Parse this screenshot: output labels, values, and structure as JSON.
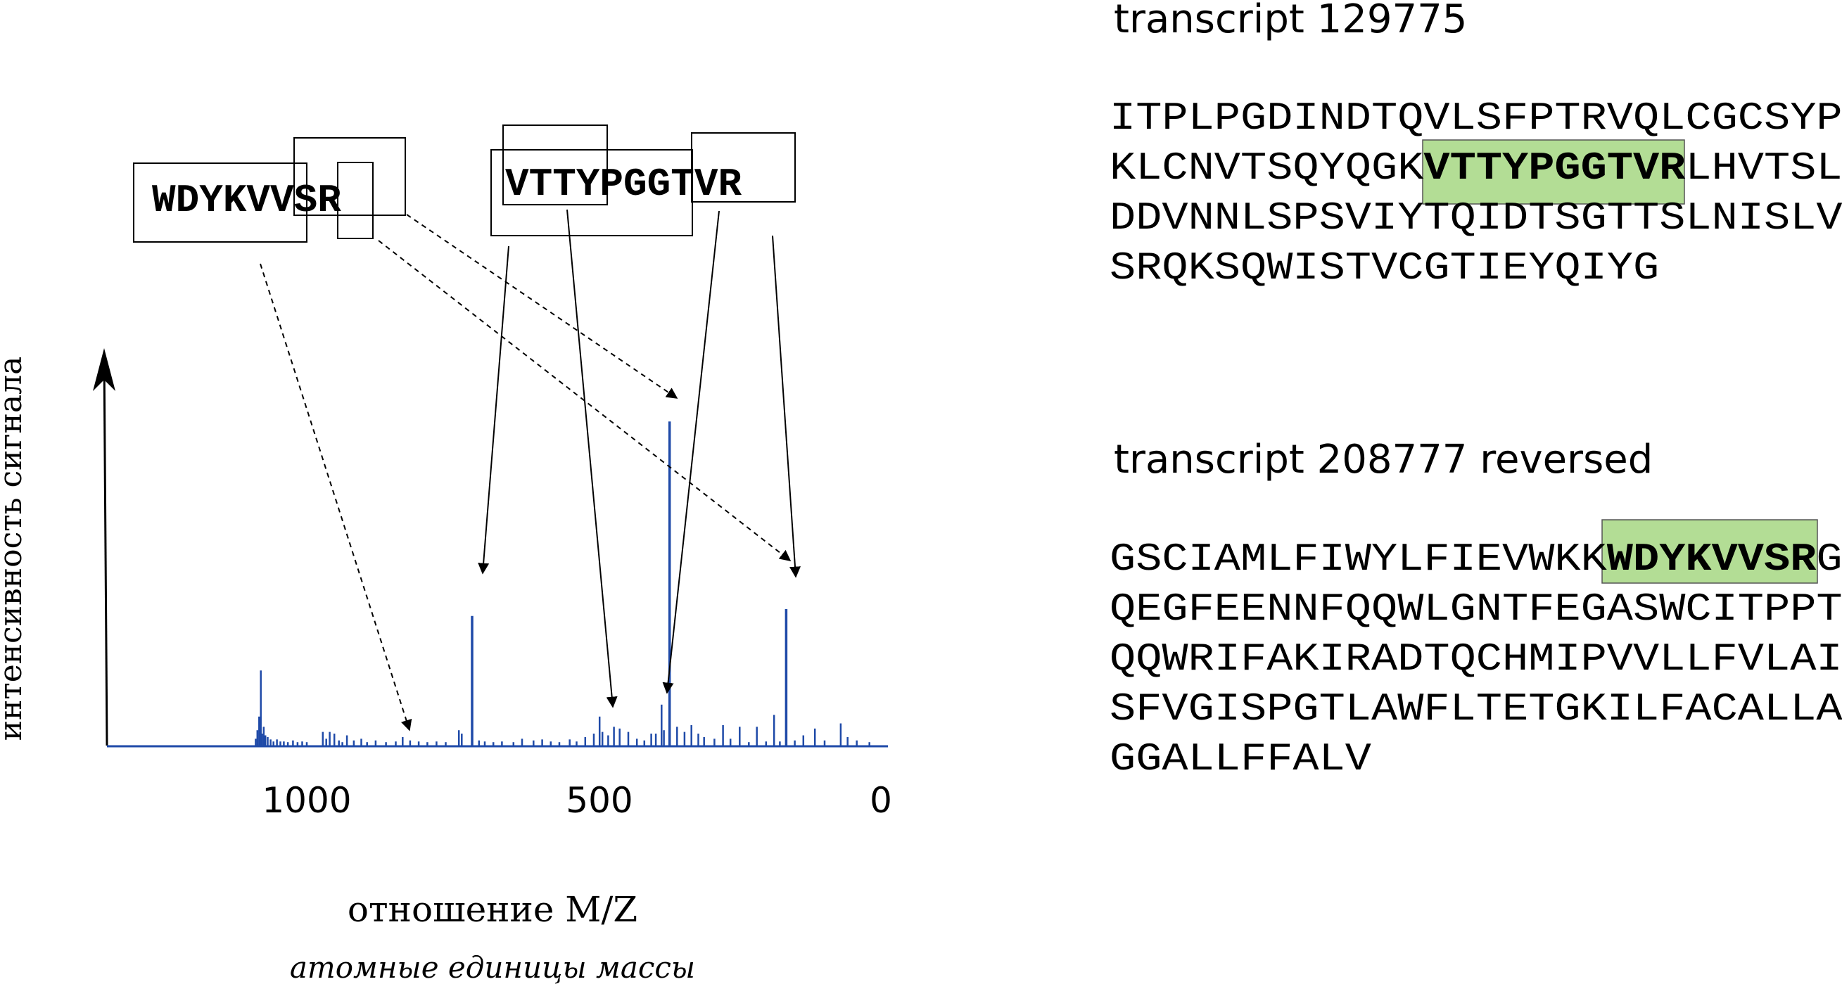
{
  "spectrum": {
    "y_axis_label": "интенсивность сигнала",
    "x_axis_label": "отношение M/Z",
    "x_axis_sublabel": "атомные единицы массы",
    "x_ticks": [
      "1000",
      "500",
      "0"
    ],
    "peptide_left": "WDYKVVSR",
    "peptide_right": "VTTYPGGTVR",
    "line_color": "#1f4aa8",
    "peaks": [
      {
        "mz": 1089,
        "h": 0.02
      },
      {
        "mz": 1086,
        "h": 0.045
      },
      {
        "mz": 1083,
        "h": 0.085
      },
      {
        "mz": 1080,
        "h": 0.22
      },
      {
        "mz": 1078,
        "h": 0.035
      },
      {
        "mz": 1075,
        "h": 0.055
      },
      {
        "mz": 1072,
        "h": 0.03
      },
      {
        "mz": 1068,
        "h": 0.025
      },
      {
        "mz": 1063,
        "h": 0.018
      },
      {
        "mz": 1058,
        "h": 0.012
      },
      {
        "mz": 1052,
        "h": 0.018
      },
      {
        "mz": 1046,
        "h": 0.012
      },
      {
        "mz": 1040,
        "h": 0.012
      },
      {
        "mz": 1033,
        "h": 0.01
      },
      {
        "mz": 1024,
        "h": 0.015
      },
      {
        "mz": 1016,
        "h": 0.01
      },
      {
        "mz": 1008,
        "h": 0.012
      },
      {
        "mz": 1000,
        "h": 0.01
      },
      {
        "mz": 972,
        "h": 0.04
      },
      {
        "mz": 966,
        "h": 0.02
      },
      {
        "mz": 960,
        "h": 0.04
      },
      {
        "mz": 952,
        "h": 0.035
      },
      {
        "mz": 944,
        "h": 0.015
      },
      {
        "mz": 938,
        "h": 0.01
      },
      {
        "mz": 930,
        "h": 0.03
      },
      {
        "mz": 918,
        "h": 0.015
      },
      {
        "mz": 905,
        "h": 0.02
      },
      {
        "mz": 895,
        "h": 0.01
      },
      {
        "mz": 880,
        "h": 0.015
      },
      {
        "mz": 862,
        "h": 0.01
      },
      {
        "mz": 845,
        "h": 0.012
      },
      {
        "mz": 833,
        "h": 0.025
      },
      {
        "mz": 820,
        "h": 0.015
      },
      {
        "mz": 805,
        "h": 0.012
      },
      {
        "mz": 790,
        "h": 0.01
      },
      {
        "mz": 774,
        "h": 0.012
      },
      {
        "mz": 758,
        "h": 0.01
      },
      {
        "mz": 735,
        "h": 0.045
      },
      {
        "mz": 730,
        "h": 0.035
      },
      {
        "mz": 712,
        "h": 0.38
      },
      {
        "mz": 700,
        "h": 0.015
      },
      {
        "mz": 690,
        "h": 0.012
      },
      {
        "mz": 675,
        "h": 0.01
      },
      {
        "mz": 660,
        "h": 0.012
      },
      {
        "mz": 640,
        "h": 0.01
      },
      {
        "mz": 625,
        "h": 0.02
      },
      {
        "mz": 605,
        "h": 0.015
      },
      {
        "mz": 590,
        "h": 0.018
      },
      {
        "mz": 575,
        "h": 0.012
      },
      {
        "mz": 560,
        "h": 0.01
      },
      {
        "mz": 542,
        "h": 0.018
      },
      {
        "mz": 530,
        "h": 0.012
      },
      {
        "mz": 515,
        "h": 0.025
      },
      {
        "mz": 500,
        "h": 0.035
      },
      {
        "mz": 490,
        "h": 0.085
      },
      {
        "mz": 485,
        "h": 0.04
      },
      {
        "mz": 475,
        "h": 0.03
      },
      {
        "mz": 465,
        "h": 0.055
      },
      {
        "mz": 455,
        "h": 0.05
      },
      {
        "mz": 440,
        "h": 0.04
      },
      {
        "mz": 425,
        "h": 0.02
      },
      {
        "mz": 412,
        "h": 0.015
      },
      {
        "mz": 400,
        "h": 0.035
      },
      {
        "mz": 392,
        "h": 0.035
      },
      {
        "mz": 382,
        "h": 0.12
      },
      {
        "mz": 378,
        "h": 0.045
      },
      {
        "mz": 368,
        "h": 0.95
      },
      {
        "mz": 355,
        "h": 0.055
      },
      {
        "mz": 342,
        "h": 0.04
      },
      {
        "mz": 330,
        "h": 0.06
      },
      {
        "mz": 318,
        "h": 0.035
      },
      {
        "mz": 308,
        "h": 0.025
      },
      {
        "mz": 290,
        "h": 0.02
      },
      {
        "mz": 275,
        "h": 0.06
      },
      {
        "mz": 262,
        "h": 0.02
      },
      {
        "mz": 246,
        "h": 0.055
      },
      {
        "mz": 230,
        "h": 0.01
      },
      {
        "mz": 216,
        "h": 0.055
      },
      {
        "mz": 200,
        "h": 0.012
      },
      {
        "mz": 186,
        "h": 0.09
      },
      {
        "mz": 176,
        "h": 0.012
      },
      {
        "mz": 165,
        "h": 0.4
      },
      {
        "mz": 150,
        "h": 0.015
      },
      {
        "mz": 135,
        "h": 0.03
      },
      {
        "mz": 115,
        "h": 0.05
      },
      {
        "mz": 98,
        "h": 0.015
      },
      {
        "mz": 70,
        "h": 0.065
      },
      {
        "mz": 58,
        "h": 0.025
      },
      {
        "mz": 42,
        "h": 0.015
      },
      {
        "mz": 20,
        "h": 0.01
      }
    ]
  },
  "transcript1": {
    "title": "transcript 129775",
    "lines": [
      {
        "pre": "ITPLPGDINDTQVLSFPTRVQLCGCSYP",
        "hl": "",
        "post": ""
      },
      {
        "pre": "KLCNVTSQYQGK",
        "hl": "VTTYPGGTVR",
        "post": "LHVTSL"
      },
      {
        "pre": "DDVNNLSPSVIYTQIDTSGTTSLNISLV",
        "hl": "",
        "post": ""
      },
      {
        "pre": "SRQKSQWISTVCGTIEYQIYG",
        "hl": "",
        "post": ""
      }
    ]
  },
  "transcript2": {
    "title": "transcript 208777 reversed",
    "lines": [
      {
        "pre": "GSCIAMLFIWYLFIEVWKK",
        "hl": "WDYKVVSR",
        "post": "G"
      },
      {
        "pre": "QEGFEENNFQQWLGNTFEGASWCITPPT",
        "hl": "",
        "post": ""
      },
      {
        "pre": "QQWRIFAKIRADTQCHMIPVVLLFVLAI",
        "hl": "",
        "post": ""
      },
      {
        "pre": "SFVGISPGTLAWFLTETGKILFACALLA",
        "hl": "",
        "post": ""
      },
      {
        "pre": "GGALLFFALV",
        "hl": "",
        "post": ""
      }
    ]
  },
  "highlight_color": "#b3dd95"
}
